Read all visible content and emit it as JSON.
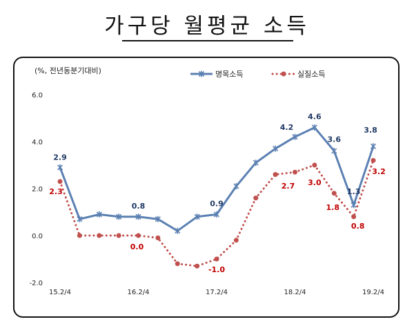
{
  "title": "가구당 월평균 소득",
  "chart_data": {
    "type": "line",
    "unit_note": "(%, 전년동분기대비)",
    "x": [
      "15.2/4",
      "",
      "",
      "",
      "16.2/4",
      "",
      "",
      "",
      "17.2/4",
      "",
      "",
      "",
      "18.2/4",
      "",
      "",
      "",
      "19.2/4"
    ],
    "x_ticks": [
      {
        "label": "15.2/4",
        "index": 0
      },
      {
        "label": "16.2/4",
        "index": 4
      },
      {
        "label": "17.2/4",
        "index": 8
      },
      {
        "label": "18.2/4",
        "index": 12
      },
      {
        "label": "19.2/4",
        "index": 16
      }
    ],
    "ylim": [
      -2.0,
      6.0
    ],
    "y_ticks": [
      "-2.0",
      "0.0",
      "2.0",
      "4.0",
      "6.0"
    ],
    "grid": false,
    "legend_position": "top-right",
    "series": [
      {
        "name": "명목소득",
        "color": "#5b80b2",
        "style": "solid",
        "marker": "asterisk",
        "values": [
          2.9,
          0.7,
          0.9,
          0.8,
          0.8,
          0.7,
          0.2,
          0.8,
          0.9,
          2.1,
          3.1,
          3.7,
          4.2,
          4.6,
          3.6,
          1.3,
          3.8
        ],
        "data_labels": [
          {
            "index": 0,
            "text": "2.9"
          },
          {
            "index": 4,
            "text": "0.8"
          },
          {
            "index": 8,
            "text": "0.9"
          },
          {
            "index": 12,
            "text": "4.2"
          },
          {
            "index": 13,
            "text": "4.6"
          },
          {
            "index": 14,
            "text": "3.6"
          },
          {
            "index": 15,
            "text": "1.3"
          },
          {
            "index": 16,
            "text": "3.8"
          }
        ]
      },
      {
        "name": "실질소득",
        "color": "#c0504d",
        "style": "dotted",
        "marker": "circle",
        "values": [
          2.3,
          0.0,
          0.0,
          0.0,
          0.0,
          -0.1,
          -1.2,
          -1.3,
          -1.0,
          -0.2,
          1.6,
          2.6,
          2.7,
          3.0,
          1.8,
          0.8,
          3.2
        ],
        "data_labels": [
          {
            "index": 0,
            "text": "2.3"
          },
          {
            "index": 4,
            "text": "0.0"
          },
          {
            "index": 8,
            "text": "-1.0"
          },
          {
            "index": 12,
            "text": "2.7"
          },
          {
            "index": 13,
            "text": "3.0"
          },
          {
            "index": 14,
            "text": "1.8"
          },
          {
            "index": 15,
            "text": "0.8"
          },
          {
            "index": 16,
            "text": "3.2"
          }
        ]
      }
    ]
  }
}
